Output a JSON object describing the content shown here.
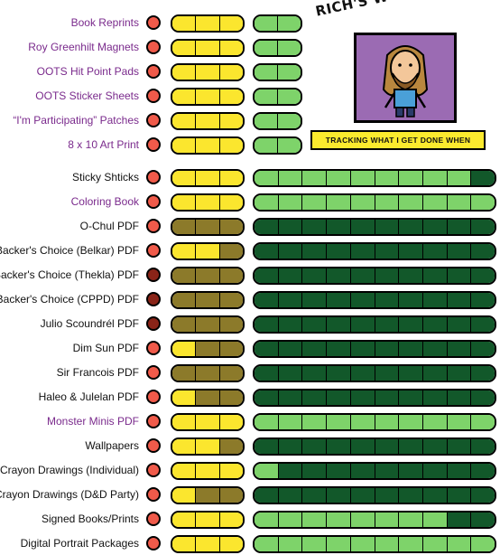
{
  "header": {
    "title": "RICH'S WORKOMETER!",
    "tagline": "TRACKING WHAT I GET DONE WHEN"
  },
  "colors": {
    "dot_red": "#f05a4a",
    "dot_dark_red": "#8a2418",
    "yellow": "#fbe62e",
    "olive": "#8c7a2a",
    "green_light": "#7ed36a",
    "green_dark": "#12582a",
    "purple_bg": "#9b6bb3",
    "link_purple": "#7a2a8c"
  },
  "group1": [
    {
      "label": "Book Reprints",
      "link": true,
      "dot": "red",
      "yellow": [
        "yellow",
        "yellow",
        "yellow"
      ],
      "green": [
        "light",
        "light"
      ]
    },
    {
      "label": "Roy Greenhilt Magnets",
      "link": true,
      "dot": "red",
      "yellow": [
        "yellow",
        "yellow",
        "yellow"
      ],
      "green": [
        "light",
        "light"
      ]
    },
    {
      "label": "OOTS Hit Point Pads",
      "link": true,
      "dot": "red",
      "yellow": [
        "yellow",
        "yellow",
        "yellow"
      ],
      "green": [
        "light",
        "light"
      ]
    },
    {
      "label": "OOTS Sticker Sheets",
      "link": true,
      "dot": "red",
      "yellow": [
        "yellow",
        "yellow",
        "yellow"
      ],
      "green": [
        "light",
        "light"
      ]
    },
    {
      "label": "“I'm Participating” Patches",
      "link": true,
      "dot": "red",
      "yellow": [
        "yellow",
        "yellow",
        "yellow"
      ],
      "green": [
        "light",
        "light"
      ]
    },
    {
      "label": "8 x 10 Art Print",
      "link": true,
      "dot": "red",
      "yellow": [
        "yellow",
        "yellow",
        "yellow"
      ],
      "green": [
        "light",
        "light"
      ]
    }
  ],
  "group2": [
    {
      "label": "Sticky Shticks",
      "link": false,
      "dot": "red",
      "yellow": [
        "yellow",
        "yellow",
        "yellow"
      ],
      "green": [
        "light",
        "light",
        "light",
        "light",
        "light",
        "light",
        "light",
        "light",
        "light",
        "dark"
      ]
    },
    {
      "label": "Coloring Book",
      "link": true,
      "dot": "red",
      "yellow": [
        "yellow",
        "yellow",
        "yellow"
      ],
      "green": [
        "light",
        "light",
        "light",
        "light",
        "light",
        "light",
        "light",
        "light",
        "light",
        "light"
      ]
    },
    {
      "label": "O-Chul PDF",
      "link": false,
      "dot": "red",
      "yellow": [
        "olive",
        "olive",
        "olive"
      ],
      "green": [
        "dark",
        "dark",
        "dark",
        "dark",
        "dark",
        "dark",
        "dark",
        "dark",
        "dark",
        "dark"
      ]
    },
    {
      "label": "Backer's Choice (Belkar) PDF",
      "link": false,
      "dot": "red",
      "yellow": [
        "yellow",
        "yellow",
        "olive"
      ],
      "green": [
        "dark",
        "dark",
        "dark",
        "dark",
        "dark",
        "dark",
        "dark",
        "dark",
        "dark",
        "dark"
      ]
    },
    {
      "label": "Backer's Choice (Thekla) PDF",
      "link": false,
      "dot": "darkred",
      "yellow": [
        "olive",
        "olive",
        "olive"
      ],
      "green": [
        "dark",
        "dark",
        "dark",
        "dark",
        "dark",
        "dark",
        "dark",
        "dark",
        "dark",
        "dark"
      ]
    },
    {
      "label": "Backer's Choice (CPPD) PDF",
      "link": false,
      "dot": "darkred",
      "yellow": [
        "olive",
        "olive",
        "olive"
      ],
      "green": [
        "dark",
        "dark",
        "dark",
        "dark",
        "dark",
        "dark",
        "dark",
        "dark",
        "dark",
        "dark"
      ]
    },
    {
      "label": "Julio Scoundrél PDF",
      "link": false,
      "dot": "darkred",
      "yellow": [
        "olive",
        "olive",
        "olive"
      ],
      "green": [
        "dark",
        "dark",
        "dark",
        "dark",
        "dark",
        "dark",
        "dark",
        "dark",
        "dark",
        "dark"
      ]
    },
    {
      "label": "Dim Sun PDF",
      "link": false,
      "dot": "red",
      "yellow": [
        "yellow",
        "olive",
        "olive"
      ],
      "green": [
        "dark",
        "dark",
        "dark",
        "dark",
        "dark",
        "dark",
        "dark",
        "dark",
        "dark",
        "dark"
      ]
    },
    {
      "label": "Sir Francois  PDF",
      "link": false,
      "dot": "red",
      "yellow": [
        "olive",
        "olive",
        "olive"
      ],
      "green": [
        "dark",
        "dark",
        "dark",
        "dark",
        "dark",
        "dark",
        "dark",
        "dark",
        "dark",
        "dark"
      ]
    },
    {
      "label": "Haleo & Julelan PDF",
      "link": false,
      "dot": "red",
      "yellow": [
        "yellow",
        "olive",
        "olive"
      ],
      "green": [
        "dark",
        "dark",
        "dark",
        "dark",
        "dark",
        "dark",
        "dark",
        "dark",
        "dark",
        "dark"
      ]
    },
    {
      "label": "Monster Minis PDF",
      "link": true,
      "dot": "red",
      "yellow": [
        "yellow",
        "yellow",
        "yellow"
      ],
      "green": [
        "light",
        "light",
        "light",
        "light",
        "light",
        "light",
        "light",
        "light",
        "light",
        "light"
      ]
    },
    {
      "label": "Wallpapers",
      "link": false,
      "dot": "red",
      "yellow": [
        "yellow",
        "yellow",
        "olive"
      ],
      "green": [
        "dark",
        "dark",
        "dark",
        "dark",
        "dark",
        "dark",
        "dark",
        "dark",
        "dark",
        "dark"
      ]
    },
    {
      "label": "Crayon Drawings (Individual)",
      "link": false,
      "dot": "red",
      "yellow": [
        "yellow",
        "yellow",
        "yellow"
      ],
      "green": [
        "light",
        "dark",
        "dark",
        "dark",
        "dark",
        "dark",
        "dark",
        "dark",
        "dark",
        "dark"
      ]
    },
    {
      "label": "Crayon Drawings (D&D Party)",
      "link": false,
      "dot": "red",
      "yellow": [
        "yellow",
        "olive",
        "olive"
      ],
      "green": [
        "dark",
        "dark",
        "dark",
        "dark",
        "dark",
        "dark",
        "dark",
        "dark",
        "dark",
        "dark"
      ]
    },
    {
      "label": "Signed Books/Prints",
      "link": false,
      "dot": "red",
      "yellow": [
        "yellow",
        "yellow",
        "yellow"
      ],
      "green": [
        "light",
        "light",
        "light",
        "light",
        "light",
        "light",
        "light",
        "light",
        "dark",
        "dark"
      ]
    },
    {
      "label": "Digital Portrait Packages",
      "link": false,
      "dot": "red",
      "yellow": [
        "yellow",
        "yellow",
        "yellow"
      ],
      "green": [
        "light",
        "light",
        "light",
        "light",
        "light",
        "light",
        "light",
        "light",
        "light",
        "light"
      ]
    }
  ]
}
